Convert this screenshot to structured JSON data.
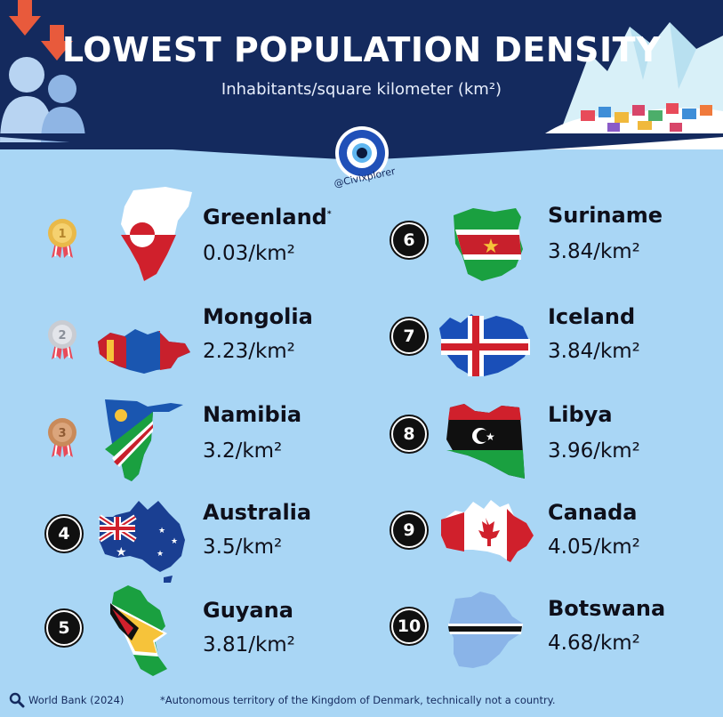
{
  "header": {
    "title": "LOWEST POPULATION DENSITY",
    "subtitle": "Inhabitants/square kilometer (km²)",
    "handle": "@Civixplorer"
  },
  "colors": {
    "header_bg": "#142a5e",
    "body_bg": "#a9d6f5",
    "gold": "#e9b949",
    "silver": "#c9ccd2",
    "bronze": "#c98a5a"
  },
  "countries": [
    {
      "rank": "1",
      "name": "Greenland",
      "note_mark": "*",
      "value": "0.03/km²",
      "badge": "gold-medal-icon"
    },
    {
      "rank": "2",
      "name": "Mongolia",
      "note_mark": "",
      "value": "2.23/km²",
      "badge": "silver-medal-icon"
    },
    {
      "rank": "3",
      "name": "Namibia",
      "note_mark": "",
      "value": "3.2/km²",
      "badge": "bronze-medal-icon"
    },
    {
      "rank": "4",
      "name": "Australia",
      "note_mark": "",
      "value": "3.5/km²",
      "badge": "rank-badge"
    },
    {
      "rank": "5",
      "name": "Guyana",
      "note_mark": "",
      "value": "3.81/km²",
      "badge": "rank-badge"
    },
    {
      "rank": "6",
      "name": "Suriname",
      "note_mark": "",
      "value": "3.84/km²",
      "badge": "rank-badge"
    },
    {
      "rank": "7",
      "name": "Iceland",
      "note_mark": "",
      "value": "3.84/km²",
      "badge": "rank-badge"
    },
    {
      "rank": "8",
      "name": "Libya",
      "note_mark": "",
      "value": "3.96/km²",
      "badge": "rank-badge"
    },
    {
      "rank": "9",
      "name": "Canada",
      "note_mark": "",
      "value": "4.05/km²",
      "badge": "rank-badge"
    },
    {
      "rank": "10",
      "name": "Botswana",
      "note_mark": "",
      "value": "4.68/km²",
      "badge": "rank-badge"
    }
  ],
  "footer": {
    "source": "World Bank (2024)",
    "note": "*Autonomous territory of the Kingdom of Denmark, technically not a country."
  }
}
